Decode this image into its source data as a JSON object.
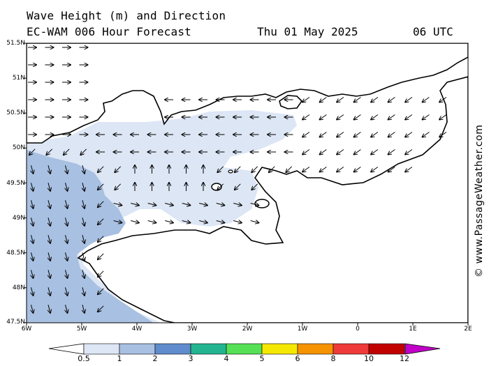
{
  "header": {
    "title": "Wave Height (m) and Direction",
    "model": "EC-WAM 006 Hour Forecast",
    "date": "Thu 01 May 2025",
    "time": "06 UTC"
  },
  "credit": "© www.PassageWeather.com",
  "axes": {
    "lat_labels": [
      "51.5N",
      "51N",
      "50.5N",
      "50N",
      "49.5N",
      "49N",
      "48.5N",
      "48N",
      "47.5N"
    ],
    "lon_labels": [
      "6W",
      "5W",
      "4W",
      "3W",
      "2W",
      "1W",
      "0",
      "1E",
      "2E"
    ]
  },
  "colorbar": {
    "labels": [
      "0.5",
      "1",
      "2",
      "3",
      "4",
      "5",
      "6",
      "8",
      "10",
      "12"
    ],
    "colors": [
      "#dde6f5",
      "#a8c0e1",
      "#5f8ccc",
      "#22b58f",
      "#55e055",
      "#f5e800",
      "#f59300",
      "#ee3a3a",
      "#c10000",
      "#c000c8"
    ]
  },
  "colors": {
    "land": "#ffffff",
    "sea_low": "#ffffff",
    "wave_0_5_1": "#dde6f5",
    "wave_1_2": "#a8c0e1",
    "coastline": "#000000"
  }
}
